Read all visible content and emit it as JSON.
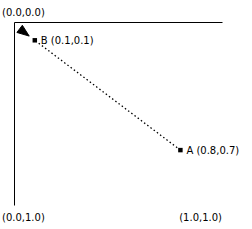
{
  "chart_data": {
    "type": "scatter",
    "x": [
      0.8,
      0.1
    ],
    "values": [
      0.7,
      0.1
    ],
    "labels": [
      "A (0.8,0.7)",
      "B (0.1,0.1)"
    ],
    "annotations": [
      "(0.0,0.0)",
      "(0.0,1.0)",
      "(1.0,1.0)"
    ],
    "xlim": [
      0.0,
      1.0
    ],
    "ylim": [
      1.0,
      0.0
    ],
    "xticks": [],
    "yticks": [],
    "tick_labels": false,
    "grid": false,
    "marker": "square",
    "line_style": "dotted",
    "color": "black"
  }
}
